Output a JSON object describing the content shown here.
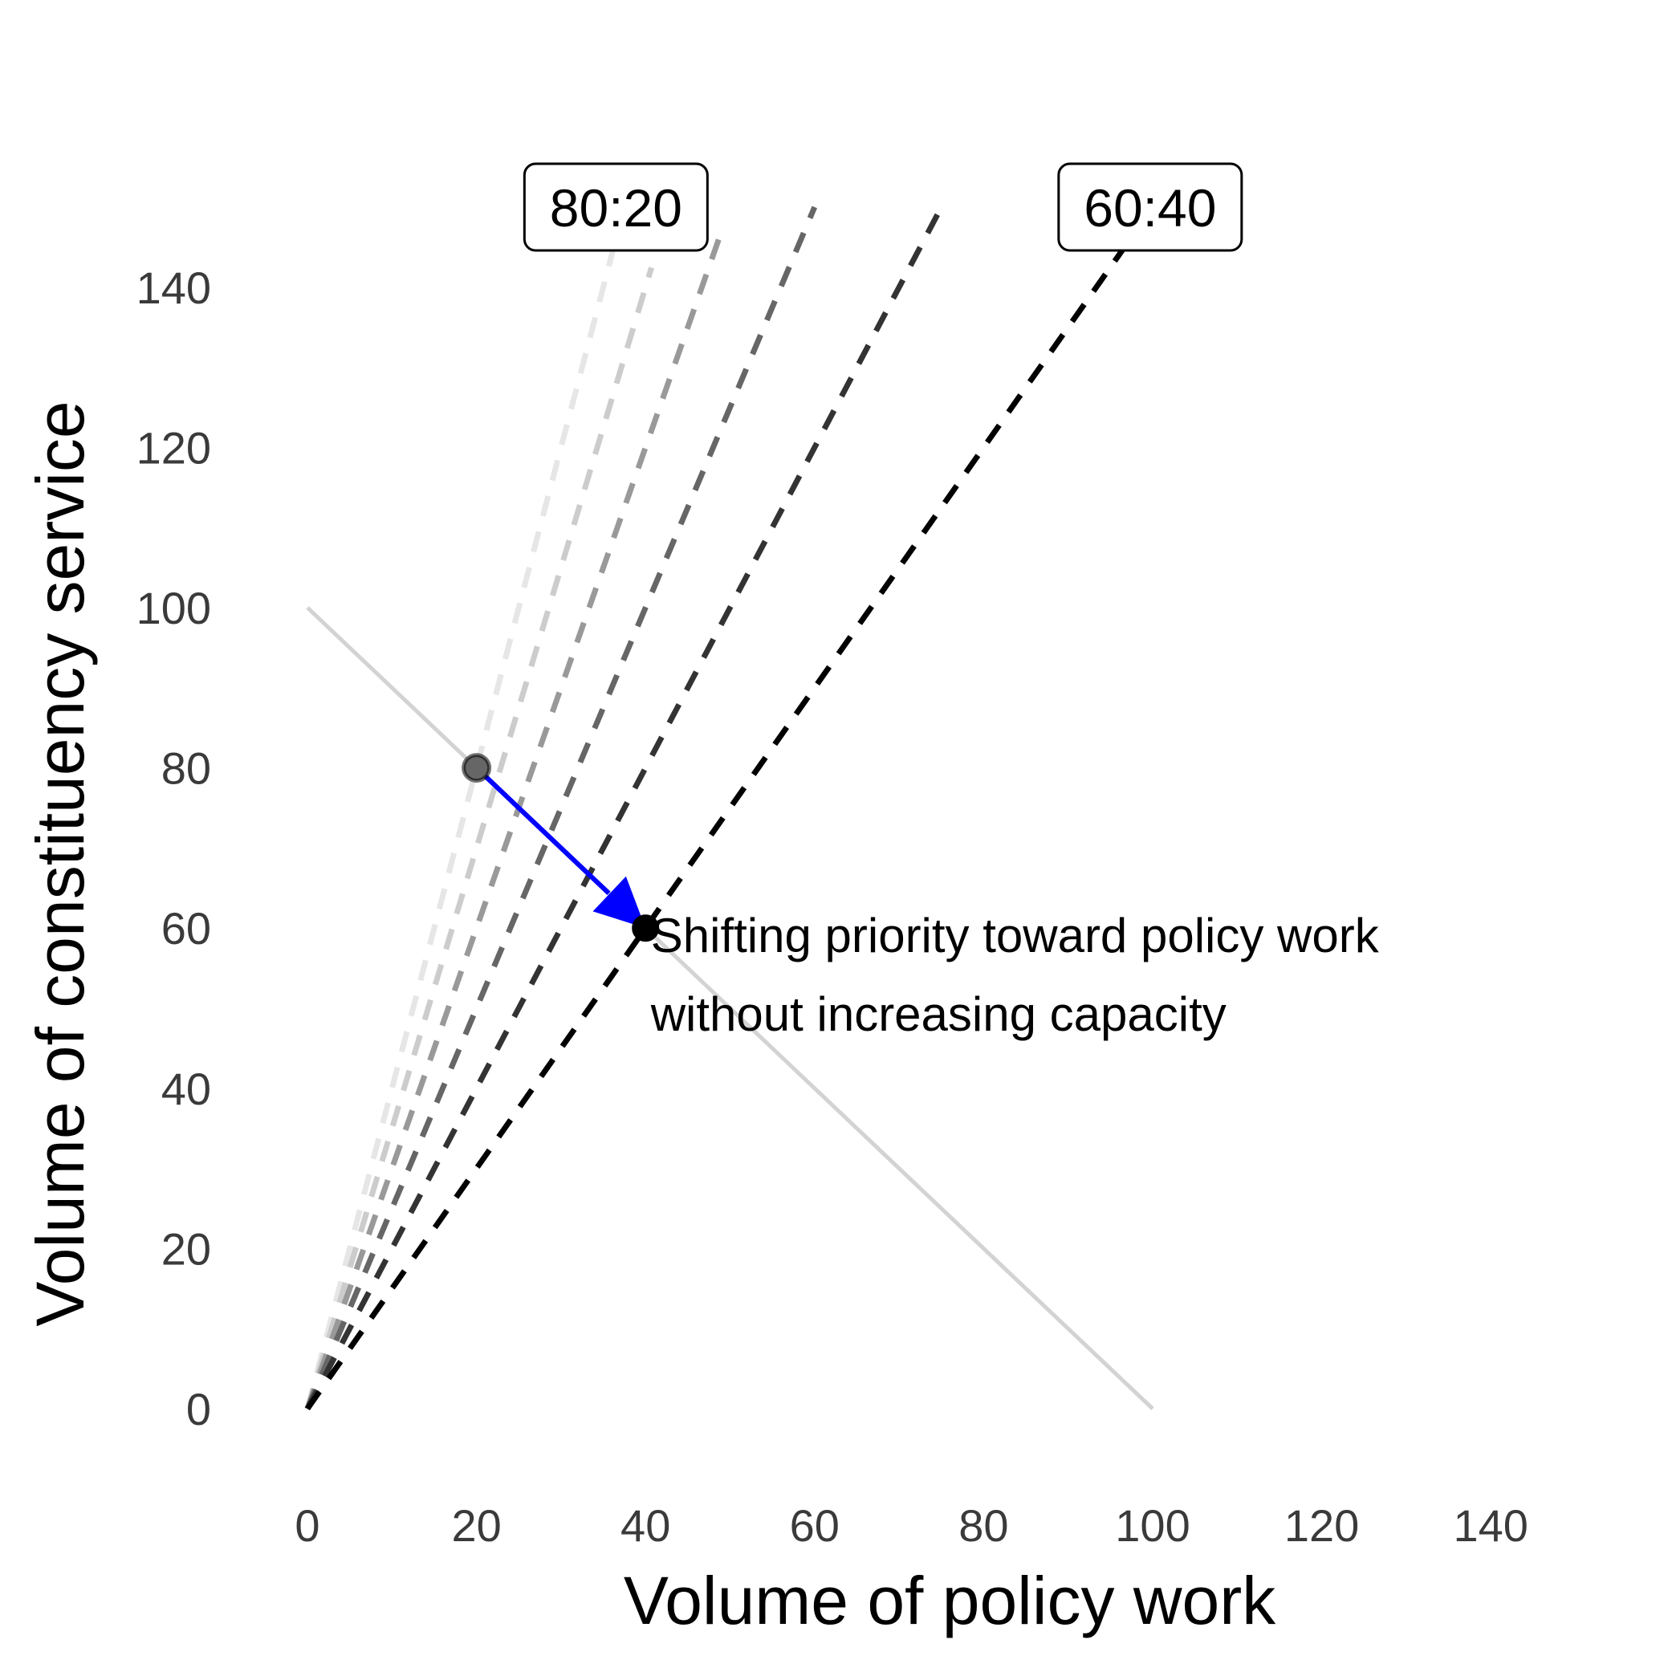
{
  "chart_data": {
    "type": "line",
    "xlabel": "Volume of policy work",
    "ylabel": "Volume of constituency service",
    "xlim": [
      0,
      140
    ],
    "ylim": [
      0,
      140
    ],
    "x_ticks": [
      0,
      20,
      40,
      60,
      80,
      100,
      120,
      140
    ],
    "y_ticks": [
      0,
      20,
      40,
      60,
      80,
      100,
      120,
      140
    ],
    "grid": false,
    "capacity_line": {
      "x": [
        0,
        100
      ],
      "y": [
        100,
        0
      ],
      "color": "#d3d3d3"
    },
    "ratio_lines": [
      {
        "slope": 4.0,
        "x_end": 36.25,
        "color": "#e6e6e6"
      },
      {
        "slope": 3.5,
        "x_end": 40.7,
        "color": "#cccccc"
      },
      {
        "slope": 3.0,
        "x_end": 48.7,
        "color": "#999999"
      },
      {
        "slope": 2.5,
        "x_end": 60.0,
        "color": "#666666"
      },
      {
        "slope": 2.0,
        "x_end": 75.0,
        "color": "#333333"
      },
      {
        "slope": 1.5,
        "x_end": 96.5,
        "color": "#000000"
      }
    ],
    "ratio_labels": [
      {
        "text": "80:20",
        "x": 36.5,
        "y": 150
      },
      {
        "text": "60:40",
        "x": 99.7,
        "y": 150
      }
    ],
    "points": [
      {
        "x": 20,
        "y": 80,
        "color": "#666666"
      },
      {
        "x": 40,
        "y": 60,
        "color": "#000000"
      }
    ],
    "arrow": {
      "from": [
        20,
        80
      ],
      "to": [
        40,
        60
      ],
      "color": "#0000ff"
    },
    "annotation": {
      "lines": [
        "Shifting priority toward policy work",
        "without increasing capacity"
      ],
      "x": 41,
      "y": 57
    }
  }
}
